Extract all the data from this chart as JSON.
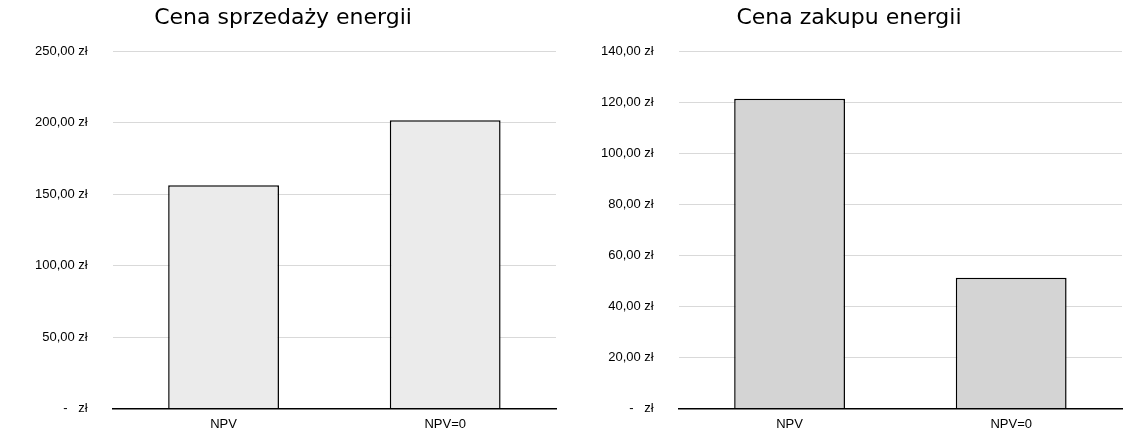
{
  "chart_data": [
    {
      "type": "bar",
      "title": "Cena sprzedaży energii",
      "categories": [
        "NPV",
        "NPV=0"
      ],
      "values": [
        156.3,
        201.8
      ],
      "color": "#ebebeb",
      "ylim": [
        0,
        250
      ],
      "yticks": [
        {
          "value": 0,
          "label": "-   zł"
        },
        {
          "value": 50,
          "label": "50,00 zł"
        },
        {
          "value": 100,
          "label": "100,00 zł"
        },
        {
          "value": 150,
          "label": "150,00 zł"
        },
        {
          "value": 200,
          "label": "200,00 zł"
        },
        {
          "value": 250,
          "label": "250,00 zł"
        }
      ],
      "grid": "y",
      "legend": false
    },
    {
      "type": "bar",
      "title": "Cena zakupu energii",
      "categories": [
        "NPV",
        "NPV=0"
      ],
      "values": [
        121.4,
        51.2
      ],
      "color": "#d4d4d4",
      "ylim": [
        0,
        140
      ],
      "yticks": [
        {
          "value": 0,
          "label": "-   zł"
        },
        {
          "value": 20,
          "label": "20,00 zł"
        },
        {
          "value": 40,
          "label": "40,00 zł"
        },
        {
          "value": 60,
          "label": "60,00 zł"
        },
        {
          "value": 80,
          "label": "80,00 zł"
        },
        {
          "value": 100,
          "label": "100,00 zł"
        },
        {
          "value": 120,
          "label": "120,00 zł"
        },
        {
          "value": 140,
          "label": "140,00 zł"
        }
      ],
      "grid": "y",
      "legend": false
    }
  ]
}
